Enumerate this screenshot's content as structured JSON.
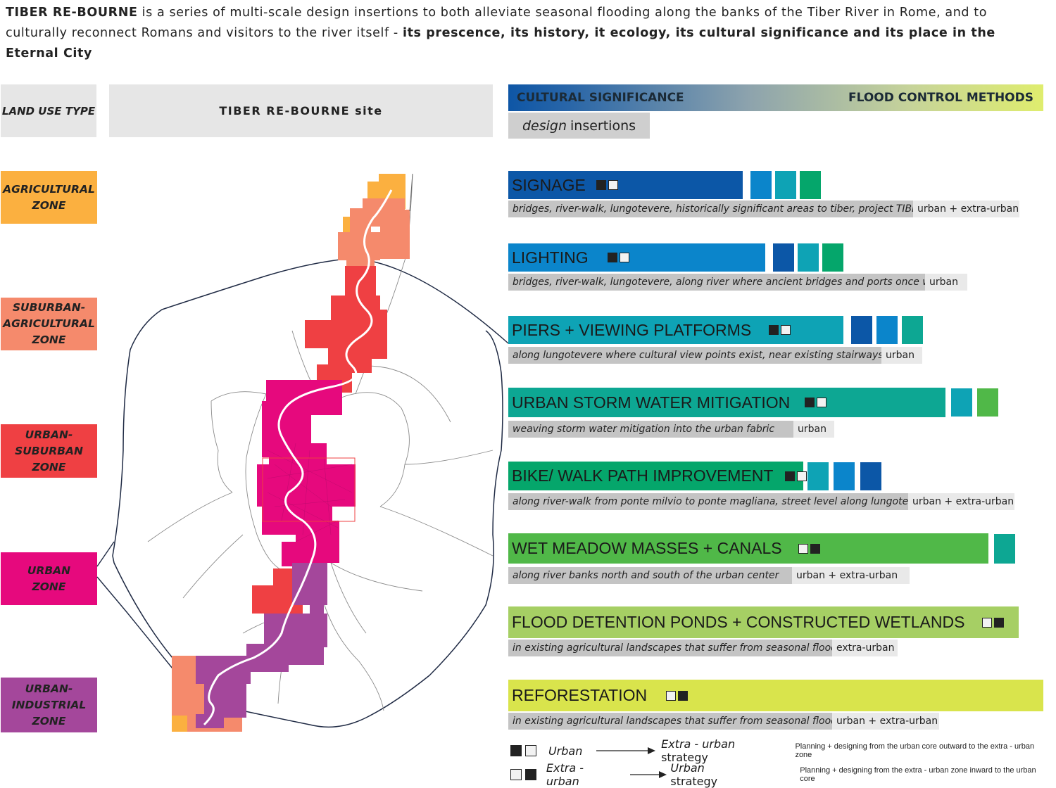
{
  "intro": {
    "lead": "TIBER RE-BOURNE",
    "body": " is a series of multi-scale design insertions to both alleviate seasonal flooding along the banks of the Tiber River in Rome, and to culturally reconnect Romans and visitors to the river itself - ",
    "emphasis": "its prescence, its history, it ecology, its cultural significance and its place in the Eternal City"
  },
  "headers": {
    "land_use": "LAND USE TYPE",
    "site": "TIBER RE-BOURNE site",
    "gradient_left": "CULTURAL SIGNIFICANCE",
    "gradient_right": "FLOOD CONTROL METHODS",
    "insertions_italic": "design",
    "insertions_rest": "insertions"
  },
  "zones": [
    {
      "label": "AGRICULTURAL\nZONE",
      "color": "#fbb040"
    },
    {
      "label": "SUBURBAN-\nAGRICULTURAL\nZONE",
      "color": "#f58a6c"
    },
    {
      "label": "URBAN-\nSUBURBAN\nZONE",
      "color": "#ef4043"
    },
    {
      "label": "URBAN\nZONE",
      "color": "#e6097d"
    },
    {
      "label": "URBAN-\nINDUSTRIAL\nZONE",
      "color": "#a4479b"
    }
  ],
  "strategies": [
    {
      "title": "SIGNAGE",
      "color": "#0c57a7",
      "squares": [
        "dark",
        "light"
      ],
      "description": "bridges, river-walk, lungotevere, historically significant areas to tiber, project TIBERius",
      "scale": "urban + extra-urban",
      "chips": [
        "#0b85cb",
        "#0ea3b5",
        "#05a66b"
      ]
    },
    {
      "title": "LIGHTING",
      "color": "#0b85cb",
      "squares": [
        "dark",
        "light"
      ],
      "description": "bridges, river-walk, lungotevere, along river where ancient bridges and ports once were",
      "scale": "urban",
      "chips": [
        "#0c57a7",
        "#0ea3b5",
        "#05a66b"
      ]
    },
    {
      "title": "PIERS + VIEWING PLATFORMS",
      "color": "#0ea3b5",
      "squares": [
        "dark",
        "light"
      ],
      "description": "along lungotevere where cultural view points exist, near existing stairways",
      "scale": "urban",
      "chips": [
        "#0c57a7",
        "#0b85cb",
        "#0da793"
      ]
    },
    {
      "title": "URBAN STORM WATER MITIGATION",
      "color": "#0da793",
      "squares": [
        "dark",
        "light"
      ],
      "description": "weaving storm water mitigation into the urban fabric",
      "scale": "urban",
      "chips": [
        "#0ea3b5",
        "#50b848"
      ]
    },
    {
      "title": "BIKE/ WALK PATH IMPROVEMENT",
      "color": "#05a66b",
      "squares": [
        "dark",
        "light"
      ],
      "description": "along river-walk from ponte milvio to ponte magliana, street level along lungotevere",
      "scale": "urban + extra-urban",
      "chips": [
        "#0ea3b5",
        "#0b85cb",
        "#0c57a7"
      ]
    },
    {
      "title": "WET MEADOW MASSES + CANALS",
      "color": "#50b848",
      "squares": [
        "light",
        "dark"
      ],
      "description": "along river banks north and south of the urban center",
      "scale": "urban + extra-urban",
      "chips": [
        "#0da793"
      ]
    },
    {
      "title": "FLOOD DETENTION PONDS + CONSTRUCTED WETLANDS",
      "color": "#a6cf64",
      "squares": [
        "light",
        "dark"
      ],
      "description": "in existing agricultural landscapes that suffer from seasonal flooding",
      "scale": "extra-urban",
      "chips": []
    },
    {
      "title": "REFORESTATION",
      "color": "#d9e44c",
      "squares": [
        "light",
        "dark"
      ],
      "description": "in existing agricultural landscapes that suffer from seasonal flooding",
      "scale": "urban + extra-urban",
      "chips": []
    }
  ],
  "legend": [
    {
      "squares": [
        "dark",
        "light"
      ],
      "from": "Urban",
      "to_italic": "Extra - urban",
      "to_rest": " strategy",
      "note": "Planning + designing from the urban core outward to the extra - urban zone"
    },
    {
      "squares": [
        "light",
        "dark"
      ],
      "from": "Extra - urban",
      "to_italic": "Urban",
      "to_rest": " strategy",
      "note": "Planning + designing from the extra - urban zone inward to the urban core"
    }
  ]
}
